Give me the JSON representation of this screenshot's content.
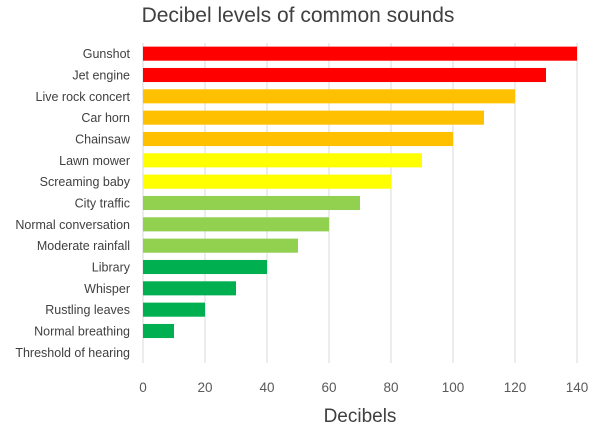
{
  "chart_data": {
    "type": "bar",
    "orientation": "horizontal",
    "title": "Decibel levels of common sounds",
    "xlabel": "Decibels",
    "ylabel": "",
    "xlim": [
      0,
      140
    ],
    "x_ticks": [
      "0",
      "20",
      "40",
      "60",
      "80",
      "100",
      "120",
      "140"
    ],
    "grid": "vertical",
    "legend": "none",
    "categories": [
      "Gunshot",
      "Jet engine",
      "Live rock concert",
      "Car horn",
      "Chainsaw",
      "Lawn mower",
      "Screaming baby",
      "City traffic",
      "Normal conversation",
      "Moderate rainfall",
      "Library",
      "Whisper",
      "Rustling leaves",
      "Normal breathing",
      "Threshold of hearing"
    ],
    "values": [
      140,
      130,
      120,
      110,
      100,
      90,
      80,
      70,
      60,
      50,
      40,
      30,
      20,
      10,
      0
    ],
    "bar_colors": [
      "#ff0000",
      "#ff0000",
      "#ffc000",
      "#ffc000",
      "#ffc000",
      "#ffff00",
      "#ffff00",
      "#92d050",
      "#92d050",
      "#92d050",
      "#00b050",
      "#00b050",
      "#00b050",
      "#00b050",
      "#00b050"
    ]
  }
}
